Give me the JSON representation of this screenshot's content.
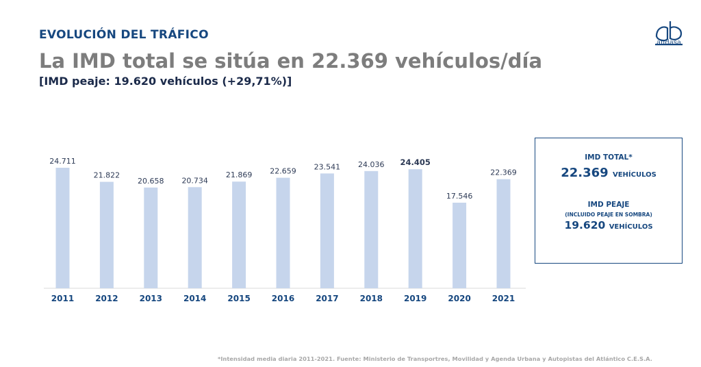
{
  "header": {
    "section_title": "EVOLUCIÓN DEL TRÁFICO",
    "headline": "La IMD total se sitúa en 22.369 vehículos/día",
    "subheadline": "[IMD peaje: 19.620 vehículos (+29,71%)]"
  },
  "logo": {
    "text": "audasa"
  },
  "colors": {
    "bar": "#c6d5ec",
    "accent": "#16477f",
    "axis": "#d9d9d9"
  },
  "chart_data": {
    "type": "bar",
    "title": "",
    "xlabel": "",
    "ylabel": "",
    "categories": [
      "2011",
      "2012",
      "2013",
      "2014",
      "2015",
      "2016",
      "2017",
      "2018",
      "2019",
      "2020",
      "2021"
    ],
    "values": [
      24711,
      21822,
      20658,
      20734,
      21869,
      22659,
      23541,
      24036,
      24405,
      17546,
      22369
    ],
    "value_labels": [
      "24.711",
      "21.822",
      "20.658",
      "20.734",
      "21.869",
      "22.659",
      "23.541",
      "24.036",
      "24.405",
      "17.546",
      "22.369"
    ],
    "highlight": [
      "2019"
    ],
    "ylim": [
      0,
      26000
    ],
    "grid": false
  },
  "info_box": {
    "total_label": "IMD TOTAL*",
    "total_value": "22.369",
    "total_unit": "VEHÍCULOS",
    "peaje_label": "IMD PEAJE",
    "peaje_sublabel": "(INCLUIDO PEAJE EN SOMBRA)",
    "peaje_value": "19.620",
    "peaje_unit": "VEHÍCULOS"
  },
  "footnote": "*Intensidad media diaria 2011-2021. Fuente: Ministerio de Transportres, Movilidad y Agenda Urbana y Autopistas del Atlántico C.E.S.A."
}
